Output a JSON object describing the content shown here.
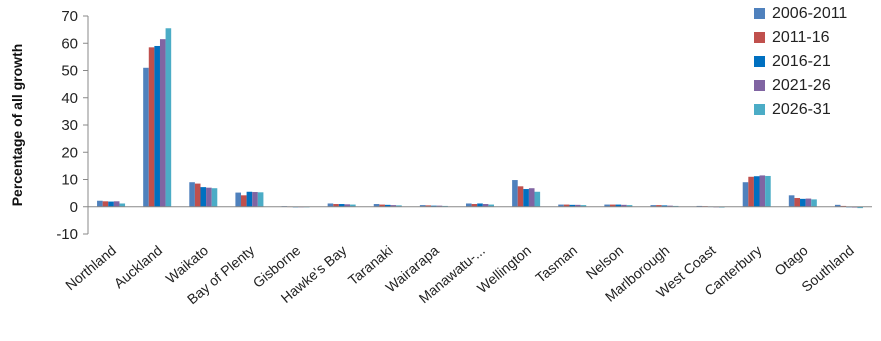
{
  "chart_data": {
    "type": "bar",
    "title": "",
    "xlabel": "",
    "ylabel": "Percentage of all growth",
    "ylim": [
      -10,
      70
    ],
    "yticks": [
      -10,
      0,
      10,
      20,
      30,
      40,
      50,
      60,
      70
    ],
    "grid": false,
    "legend_position": "top-right",
    "categories": [
      "Northland",
      "Auckland",
      "Waikato",
      "Bay of Plenty",
      "Gisborne",
      "Hawke's Bay",
      "Taranaki",
      "Wairarapa",
      "Manawatu-...",
      "Wellington",
      "Tasman",
      "Nelson",
      "Marlborough",
      "West Coast",
      "Canterbury",
      "Otago",
      "Southland"
    ],
    "series": [
      {
        "name": "2006-2011",
        "color": "#4F81BD",
        "values": [
          2.2,
          51,
          9.0,
          5.2,
          0.2,
          1.2,
          1.0,
          0.6,
          1.2,
          9.8,
          0.8,
          0.8,
          0.6,
          0.3,
          9.0,
          4.2,
          0.7
        ]
      },
      {
        "name": "2011-16",
        "color": "#C0504D",
        "values": [
          2.0,
          58.5,
          8.5,
          4.2,
          0.1,
          1.0,
          0.8,
          0.5,
          1.0,
          7.5,
          0.8,
          0.8,
          0.6,
          0.2,
          11.0,
          3.2,
          0.3
        ]
      },
      {
        "name": "2016-21",
        "color": "#0070C0",
        "values": [
          1.9,
          59,
          7.2,
          5.5,
          0.0,
          1.0,
          0.7,
          0.4,
          1.2,
          6.5,
          0.7,
          0.8,
          0.5,
          0.1,
          11.2,
          2.9,
          0.0
        ]
      },
      {
        "name": "2021-26",
        "color": "#8064A2",
        "values": [
          2.0,
          61.5,
          7.0,
          5.4,
          -0.1,
          0.9,
          0.6,
          0.4,
          1.0,
          6.8,
          0.7,
          0.7,
          0.4,
          0.0,
          11.5,
          3.0,
          -0.3
        ]
      },
      {
        "name": "2026-31",
        "color": "#4BACC6",
        "values": [
          1.2,
          65.5,
          6.8,
          5.3,
          -0.2,
          0.8,
          0.5,
          0.3,
          0.8,
          5.5,
          0.6,
          0.6,
          0.3,
          -0.3,
          11.3,
          2.7,
          -0.5
        ]
      }
    ]
  }
}
